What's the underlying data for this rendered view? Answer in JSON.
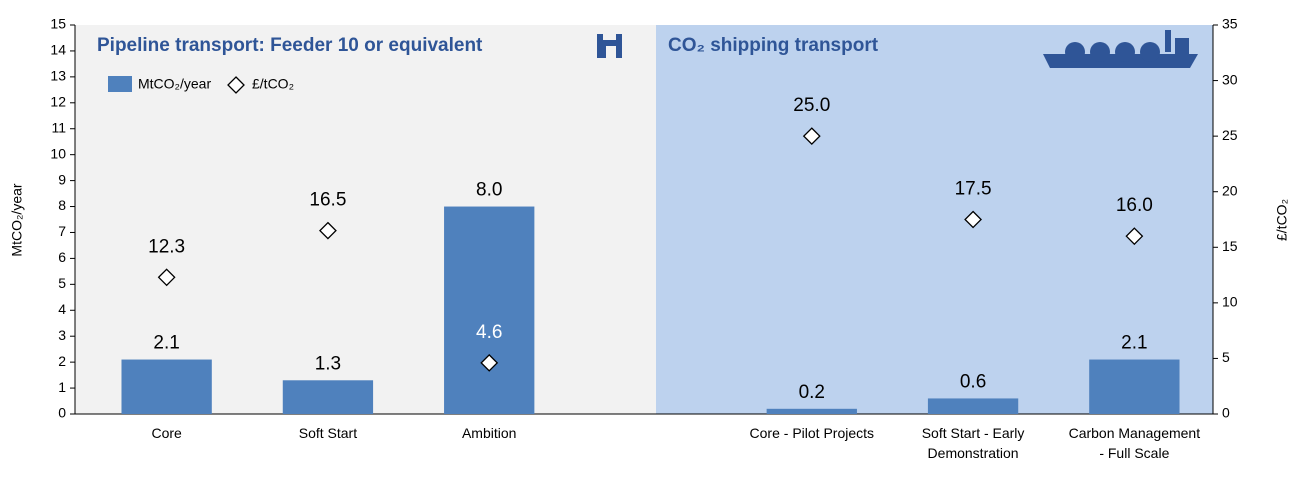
{
  "chart_data": {
    "type": "bar",
    "panels": [
      {
        "title": "Pipeline transport: Feeder 10 or equivalent",
        "color": "#f2f2f2"
      },
      {
        "title": "CO₂ shipping transport",
        "color": "#bdd2ee"
      }
    ],
    "categories": [
      "Core",
      "Soft Start",
      "Ambition",
      null,
      "Core - Pilot Projects",
      "Soft Start - Early Demonstration",
      "Carbon Management - Full Scale"
    ],
    "series": [
      {
        "name": "MtCO₂/year",
        "type": "bar",
        "axis": "y",
        "color": "#4f81bd",
        "values": [
          2.1,
          1.3,
          8.0,
          null,
          0.2,
          0.6,
          2.1
        ],
        "value_labels": [
          "2.1",
          "1.3",
          "8.0",
          null,
          "0.2",
          "0.6",
          "2.1"
        ]
      },
      {
        "name": "£/tCO₂",
        "type": "scatter",
        "axis": "y2",
        "color": "#ffffff",
        "values": [
          12.3,
          16.5,
          4.6,
          null,
          25.0,
          17.5,
          16.0
        ],
        "value_labels": [
          "12.3",
          "16.5",
          "4.6",
          null,
          "25.0",
          "17.5",
          "16.0"
        ]
      }
    ],
    "ylabel": "MtCO₂/year",
    "y2label": "£/tCO₂",
    "ylim": [
      0,
      15
    ],
    "yticks": [
      0,
      1,
      2,
      3,
      4,
      5,
      6,
      7,
      8,
      9,
      10,
      11,
      12,
      13,
      14,
      15
    ],
    "y2lim": [
      0,
      35
    ],
    "y2ticks": [
      0,
      5,
      10,
      15,
      20,
      25,
      30,
      35
    ],
    "legend": "top-left"
  }
}
